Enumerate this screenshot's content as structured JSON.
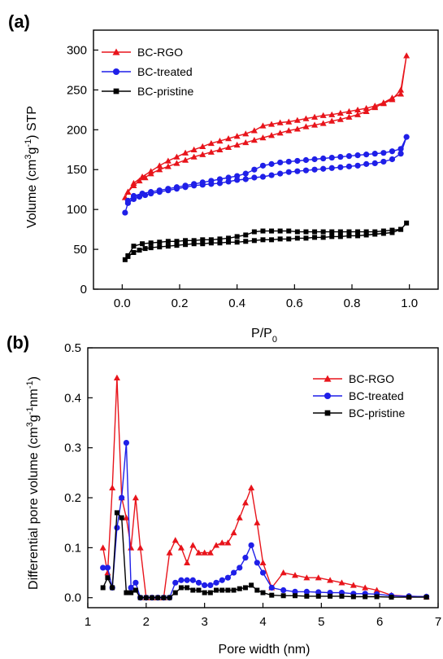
{
  "colors": {
    "BC-RGO": "#e8141b",
    "BC-treated": "#1f1fe8",
    "BC-pristine": "#000000"
  },
  "chart_data": [
    {
      "type": "line",
      "panel_label": "(a)",
      "xlabel": "P/P",
      "xlabel_sub": "0",
      "ylabel_parts": [
        "Volume (cm",
        "3",
        "g",
        "-1",
        ") STP"
      ],
      "xlim": [
        -0.1,
        1.1
      ],
      "ylim": [
        0,
        325
      ],
      "xticks": [
        0.0,
        0.2,
        0.4,
        0.6,
        0.8,
        1.0
      ],
      "xtick_labels": [
        "0.0",
        "0.2",
        "0.4",
        "0.6",
        "0.8",
        "1.0"
      ],
      "yticks": [
        0,
        50,
        100,
        150,
        200,
        250,
        300
      ],
      "ytick_labels": [
        "0",
        "50",
        "100",
        "150",
        "200",
        "250",
        "300"
      ],
      "legend_position": "top-left",
      "series": [
        {
          "name": "BC-RGO",
          "marker": "triangle",
          "x": [
            0.01,
            0.02,
            0.04,
            0.06,
            0.08,
            0.1,
            0.13,
            0.16,
            0.19,
            0.22,
            0.25,
            0.28,
            0.31,
            0.34,
            0.37,
            0.4,
            0.43,
            0.46,
            0.49,
            0.52,
            0.55,
            0.58,
            0.61,
            0.64,
            0.67,
            0.7,
            0.73,
            0.76,
            0.79,
            0.82,
            0.85,
            0.88,
            0.91,
            0.94,
            0.97,
            0.99,
            0.97,
            0.94,
            0.91,
            0.88,
            0.85,
            0.82,
            0.79,
            0.76,
            0.73,
            0.7,
            0.67,
            0.64,
            0.61,
            0.58,
            0.55,
            0.52,
            0.49,
            0.46,
            0.43,
            0.4,
            0.37,
            0.34,
            0.31,
            0.28,
            0.25,
            0.22,
            0.19,
            0.16,
            0.13,
            0.1,
            0.07,
            0.04,
            0.02
          ],
          "y": [
            115,
            122,
            130,
            136,
            140,
            145,
            150,
            154,
            158,
            162,
            166,
            169,
            172,
            175,
            178,
            181,
            184,
            187,
            190,
            193,
            196,
            199,
            201,
            204,
            206,
            208,
            211,
            213,
            216,
            219,
            223,
            228,
            233,
            238,
            250,
            293,
            245,
            240,
            234,
            230,
            227,
            225,
            223,
            221,
            219,
            218,
            216,
            214,
            212,
            210,
            209,
            207,
            205,
            199,
            195,
            192,
            189,
            186,
            183,
            179,
            175,
            171,
            166,
            161,
            155,
            148,
            141,
            133,
            122
          ]
        },
        {
          "name": "BC-treated",
          "marker": "circle",
          "x": [
            0.01,
            0.02,
            0.04,
            0.06,
            0.08,
            0.1,
            0.13,
            0.16,
            0.19,
            0.22,
            0.25,
            0.28,
            0.31,
            0.34,
            0.37,
            0.4,
            0.43,
            0.46,
            0.49,
            0.52,
            0.55,
            0.58,
            0.61,
            0.64,
            0.67,
            0.7,
            0.73,
            0.76,
            0.79,
            0.82,
            0.85,
            0.88,
            0.91,
            0.94,
            0.97,
            0.99,
            0.97,
            0.94,
            0.91,
            0.88,
            0.85,
            0.82,
            0.79,
            0.76,
            0.73,
            0.7,
            0.67,
            0.64,
            0.61,
            0.58,
            0.55,
            0.52,
            0.49,
            0.46,
            0.43,
            0.4,
            0.37,
            0.34,
            0.31,
            0.28,
            0.25,
            0.22,
            0.19,
            0.16,
            0.13,
            0.1,
            0.07,
            0.04,
            0.02
          ],
          "y": [
            96,
            108,
            113,
            116,
            118,
            120,
            122,
            124,
            126,
            128,
            130,
            131,
            132,
            133,
            135,
            137,
            138,
            140,
            141,
            143,
            145,
            147,
            148,
            149,
            150,
            151,
            152,
            153,
            154,
            155,
            157,
            158,
            160,
            163,
            170,
            191,
            176,
            173,
            171,
            170,
            169,
            168,
            167,
            166,
            165,
            164,
            163,
            162,
            161,
            160,
            159,
            157,
            155,
            150,
            145,
            142,
            140,
            138,
            136,
            134,
            132,
            130,
            128,
            126,
            124,
            122,
            120,
            117,
            111
          ]
        },
        {
          "name": "BC-pristine",
          "marker": "square",
          "x": [
            0.01,
            0.02,
            0.04,
            0.06,
            0.08,
            0.1,
            0.13,
            0.16,
            0.19,
            0.22,
            0.25,
            0.28,
            0.31,
            0.34,
            0.37,
            0.4,
            0.43,
            0.46,
            0.49,
            0.52,
            0.55,
            0.58,
            0.61,
            0.64,
            0.67,
            0.7,
            0.73,
            0.76,
            0.79,
            0.82,
            0.85,
            0.88,
            0.91,
            0.94,
            0.97,
            0.99,
            0.97,
            0.94,
            0.91,
            0.88,
            0.85,
            0.82,
            0.79,
            0.76,
            0.73,
            0.7,
            0.67,
            0.64,
            0.61,
            0.58,
            0.55,
            0.52,
            0.49,
            0.46,
            0.43,
            0.4,
            0.37,
            0.34,
            0.31,
            0.28,
            0.25,
            0.22,
            0.19,
            0.16,
            0.13,
            0.1,
            0.07,
            0.04,
            0.02
          ],
          "y": [
            37,
            41,
            46,
            49,
            51,
            52,
            53,
            54,
            55,
            56,
            57,
            57,
            58,
            58,
            59,
            59,
            60,
            61,
            62,
            62,
            63,
            63,
            64,
            64,
            65,
            65,
            66,
            66,
            67,
            67,
            68,
            69,
            70,
            71,
            75,
            83,
            75,
            74,
            73,
            72,
            72,
            72,
            72,
            72,
            72,
            72,
            72,
            72,
            72,
            73,
            73,
            73,
            73,
            72,
            68,
            66,
            64,
            63,
            62,
            62,
            61,
            61,
            60,
            60,
            59,
            58,
            57,
            54,
            42
          ]
        }
      ]
    },
    {
      "type": "line",
      "panel_label": "(b)",
      "xlabel": "Pore width (nm)",
      "ylabel_parts": [
        "Differential pore volume (cm",
        "3",
        "g",
        "-1",
        "nm",
        "-1",
        ")"
      ],
      "xlim": [
        1,
        7
      ],
      "ylim": [
        -0.02,
        0.5
      ],
      "xticks": [
        1,
        2,
        3,
        4,
        5,
        6,
        7
      ],
      "xtick_labels": [
        "1",
        "2",
        "3",
        "4",
        "5",
        "6",
        "7"
      ],
      "yticks": [
        0.0,
        0.1,
        0.2,
        0.3,
        0.4,
        0.5
      ],
      "ytick_labels": [
        "0.0",
        "0.1",
        "0.2",
        "0.3",
        "0.4",
        "0.5"
      ],
      "legend_position": "top-right",
      "series": [
        {
          "name": "BC-RGO",
          "marker": "triangle",
          "x": [
            1.26,
            1.34,
            1.42,
            1.5,
            1.58,
            1.66,
            1.74,
            1.82,
            1.9,
            2.0,
            2.1,
            2.2,
            2.3,
            2.4,
            2.5,
            2.6,
            2.7,
            2.8,
            2.9,
            3.0,
            3.1,
            3.2,
            3.3,
            3.4,
            3.5,
            3.6,
            3.7,
            3.8,
            3.9,
            4.0,
            4.15,
            4.35,
            4.55,
            4.75,
            4.95,
            5.15,
            5.35,
            5.55,
            5.75,
            5.95,
            6.2,
            6.5,
            6.8
          ],
          "y": [
            0.1,
            0.05,
            0.22,
            0.44,
            0.2,
            0.16,
            0.1,
            0.2,
            0.1,
            0.0,
            0.0,
            0.0,
            0.0,
            0.09,
            0.115,
            0.1,
            0.07,
            0.105,
            0.09,
            0.09,
            0.09,
            0.105,
            0.11,
            0.11,
            0.13,
            0.16,
            0.19,
            0.22,
            0.15,
            0.07,
            0.02,
            0.05,
            0.045,
            0.04,
            0.04,
            0.035,
            0.03,
            0.025,
            0.02,
            0.015,
            0.005,
            0.003,
            0.002
          ]
        },
        {
          "name": "BC-treated",
          "marker": "circle",
          "x": [
            1.26,
            1.34,
            1.42,
            1.5,
            1.58,
            1.66,
            1.74,
            1.82,
            1.9,
            2.0,
            2.1,
            2.2,
            2.3,
            2.4,
            2.5,
            2.6,
            2.7,
            2.8,
            2.9,
            3.0,
            3.1,
            3.2,
            3.3,
            3.4,
            3.5,
            3.6,
            3.7,
            3.8,
            3.9,
            4.0,
            4.15,
            4.35,
            4.55,
            4.75,
            4.95,
            5.15,
            5.35,
            5.55,
            5.75,
            5.95,
            6.2,
            6.5,
            6.8
          ],
          "y": [
            0.06,
            0.06,
            0.02,
            0.14,
            0.2,
            0.31,
            0.02,
            0.03,
            0.0,
            0.0,
            0.0,
            0.0,
            0.0,
            0.0,
            0.03,
            0.035,
            0.035,
            0.035,
            0.03,
            0.025,
            0.025,
            0.03,
            0.035,
            0.04,
            0.05,
            0.06,
            0.08,
            0.105,
            0.07,
            0.05,
            0.02,
            0.015,
            0.012,
            0.012,
            0.011,
            0.01,
            0.01,
            0.008,
            0.008,
            0.007,
            0.004,
            0.003,
            0.002
          ]
        },
        {
          "name": "BC-pristine",
          "marker": "square",
          "x": [
            1.26,
            1.34,
            1.42,
            1.5,
            1.58,
            1.66,
            1.74,
            1.82,
            1.9,
            2.0,
            2.1,
            2.2,
            2.3,
            2.4,
            2.5,
            2.6,
            2.7,
            2.8,
            2.9,
            3.0,
            3.1,
            3.2,
            3.3,
            3.4,
            3.5,
            3.6,
            3.7,
            3.8,
            3.9,
            4.0,
            4.15,
            4.35,
            4.55,
            4.75,
            4.95,
            5.15,
            5.35,
            5.55,
            5.75,
            5.95,
            6.2,
            6.5,
            6.8
          ],
          "y": [
            0.02,
            0.04,
            0.02,
            0.17,
            0.16,
            0.01,
            0.01,
            0.015,
            0.0,
            0.0,
            0.0,
            0.0,
            0.0,
            0.0,
            0.01,
            0.02,
            0.02,
            0.015,
            0.015,
            0.01,
            0.01,
            0.015,
            0.015,
            0.015,
            0.015,
            0.018,
            0.02,
            0.025,
            0.015,
            0.01,
            0.005,
            0.004,
            0.004,
            0.003,
            0.003,
            0.003,
            0.003,
            0.002,
            0.002,
            0.002,
            0.001,
            0.001,
            0.001
          ]
        }
      ]
    }
  ]
}
